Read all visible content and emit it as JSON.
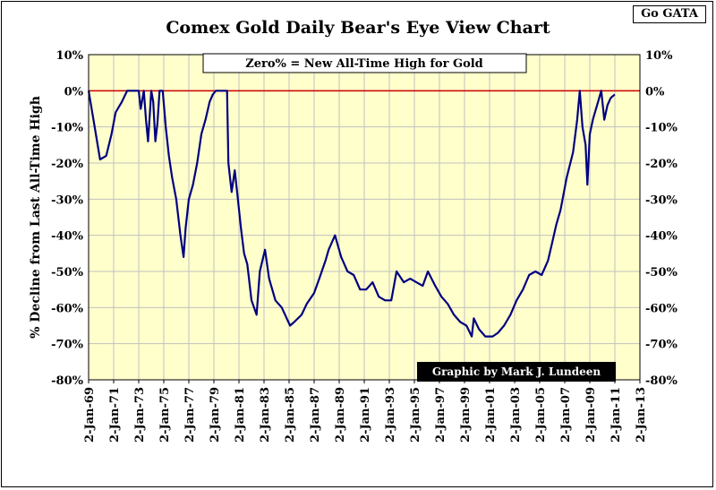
{
  "header": {
    "title": "Comex Gold Daily Bear's Eye View Chart",
    "tag": "Go GATA"
  },
  "colors": {
    "plot_background": "#ffffcc",
    "series": "#000080",
    "zero_line": "#cc0000",
    "grid": "#c0c0c0"
  },
  "chart_data": {
    "type": "line",
    "title": "Comex Gold Daily Bear's Eye View Chart",
    "ylabel": "% Decline from Last All-Time High",
    "xlabel": "",
    "ylim": [
      -80,
      10
    ],
    "xlim": [
      "1969-01-02",
      "2013-01-02"
    ],
    "grid": true,
    "yticks": [
      "10%",
      "0%",
      "-10%",
      "-20%",
      "-30%",
      "-40%",
      "-50%",
      "-60%",
      "-70%",
      "-80%"
    ],
    "xticks": [
      "2-Jan-69",
      "2-Jan-71",
      "2-Jan-73",
      "2-Jan-75",
      "2-Jan-77",
      "2-Jan-79",
      "2-Jan-81",
      "2-Jan-83",
      "2-Jan-85",
      "2-Jan-87",
      "2-Jan-89",
      "2-Jan-91",
      "2-Jan-93",
      "2-Jan-95",
      "2-Jan-97",
      "2-Jan-99",
      "2-Jan-01",
      "2-Jan-03",
      "2-Jan-05",
      "2-Jan-07",
      "2-Jan-09",
      "2-Jan-11",
      "2-Jan-13"
    ],
    "annotations": {
      "zero_label": "Zero% = New All-Time High for Gold",
      "credit": "Graphic by Mark J. Lundeen"
    },
    "reference_line": {
      "y": 0
    },
    "series": [
      {
        "x": [
          "1969-01-02",
          "1969-04-01",
          "1969-08-01",
          "1969-12-01",
          "1970-06-01",
          "1970-11-01",
          "1971-03-01",
          "1971-09-01",
          "1972-02-01",
          "1972-08-01",
          "1973-01-01",
          "1973-03-01",
          "1973-06-01",
          "1973-08-01",
          "1973-10-01",
          "1973-12-01",
          "1974-01-01",
          "1974-03-01",
          "1974-05-01",
          "1974-07-01",
          "1974-09-01",
          "1974-12-01",
          "1975-03-01",
          "1975-06-01",
          "1975-09-01",
          "1976-01-01",
          "1976-05-01",
          "1976-08-01",
          "1976-10-01",
          "1977-01-01",
          "1977-05-01",
          "1977-09-01",
          "1978-01-01",
          "1978-05-01",
          "1978-09-01",
          "1978-12-01",
          "1979-03-01",
          "1979-07-01",
          "1979-10-01",
          "1980-01-02",
          "1980-01-21",
          "1980-03-01",
          "1980-06-01",
          "1980-09-01",
          "1980-12-01",
          "1981-03-01",
          "1981-06-01",
          "1981-09-01",
          "1982-01-01",
          "1982-06-01",
          "1982-09-01",
          "1983-02-01",
          "1983-06-01",
          "1983-12-01",
          "1984-06-01",
          "1985-02-01",
          "1985-06-01",
          "1986-01-01",
          "1986-06-01",
          "1987-01-01",
          "1987-06-01",
          "1987-12-01",
          "1988-03-01",
          "1988-09-01",
          "1989-03-01",
          "1989-09-01",
          "1990-03-01",
          "1990-09-01",
          "1991-03-01",
          "1991-09-01",
          "1992-03-01",
          "1992-09-01",
          "1993-03-01",
          "1993-08-01",
          "1994-03-01",
          "1994-09-01",
          "1995-03-01",
          "1995-09-01",
          "1996-02-01",
          "1996-09-01",
          "1997-03-01",
          "1997-09-01",
          "1998-03-01",
          "1998-09-01",
          "1999-03-01",
          "1999-08-01",
          "1999-10-01",
          "2000-03-01",
          "2000-09-01",
          "2001-04-01",
          "2001-09-01",
          "2002-03-01",
          "2002-09-01",
          "2003-03-01",
          "2003-09-01",
          "2004-03-01",
          "2004-09-01",
          "2005-03-01",
          "2005-09-01",
          "2006-01-01",
          "2006-05-01",
          "2006-09-01",
          "2007-03-01",
          "2007-09-01",
          "2008-01-01",
          "2008-03-17",
          "2008-06-01",
          "2008-09-01",
          "2008-10-24",
          "2009-01-01",
          "2009-04-01",
          "2009-09-01",
          "2009-12-03",
          "2010-03-01",
          "2010-06-01",
          "2010-09-01",
          "2010-12-31"
        ],
        "values": [
          0,
          -5,
          -12,
          -19,
          -18,
          -12,
          -6,
          -3,
          0,
          0,
          0,
          -5,
          0,
          -8,
          -14,
          -5,
          0,
          -3,
          -14,
          -9,
          0,
          0,
          -10,
          -18,
          -24,
          -30,
          -40,
          -46,
          -38,
          -30,
          -26,
          -20,
          -12,
          -8,
          -3,
          -1,
          0,
          0,
          0,
          0,
          0,
          -20,
          -28,
          -22,
          -30,
          -38,
          -45,
          -48,
          -58,
          -62,
          -50,
          -44,
          -52,
          -58,
          -60,
          -65,
          -64,
          -62,
          -59,
          -56,
          -52,
          -47,
          -44,
          -40,
          -46,
          -50,
          -51,
          -55,
          -55,
          -53,
          -57,
          -58,
          -58,
          -50,
          -53,
          -52,
          -53,
          -54,
          -50,
          -54,
          -57,
          -59,
          -62,
          -64,
          -65,
          -68,
          -63,
          -66,
          -68,
          -68,
          -67,
          -65,
          -62,
          -58,
          -55,
          -51,
          -50,
          -51,
          -47,
          -42,
          -37,
          -33,
          -24,
          -17,
          -8,
          0,
          -10,
          -15,
          -26,
          -12,
          -8,
          -3,
          0,
          -8,
          -4,
          -2,
          -1
        ]
      }
    ]
  }
}
